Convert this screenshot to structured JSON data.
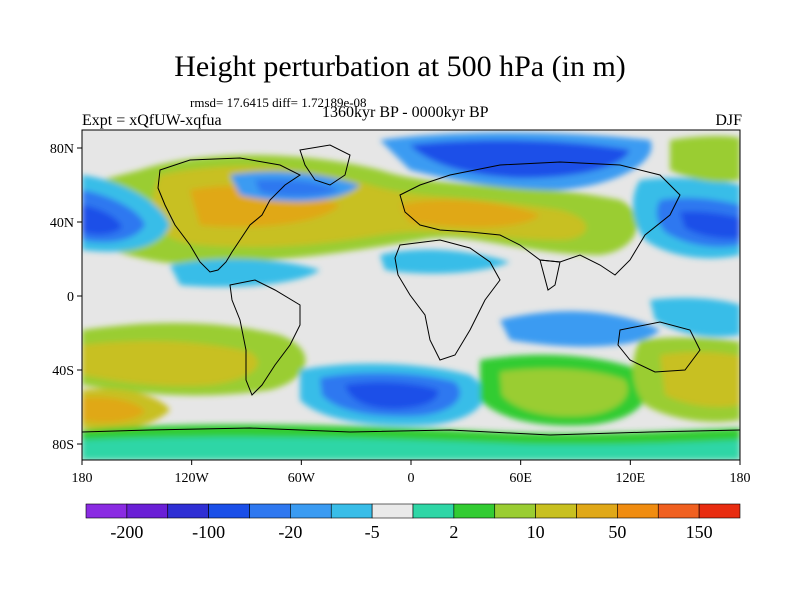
{
  "title": "Height perturbation at 500 hPa (in m)",
  "stats": "rmsd= 17.6415 diff= 1.72189e-08",
  "expt": "Expt = xQfUW-xqfua",
  "period": "1360kyr BP - 0000kyr BP",
  "season": "DJF",
  "lat_labels": [
    "80N",
    "40N",
    "0",
    "40S",
    "80S"
  ],
  "lon_labels": [
    "180",
    "120W",
    "60W",
    "0",
    "60E",
    "120E",
    "180"
  ],
  "colorbar": {
    "colors": [
      "#8a2be2",
      "#6a1fd6",
      "#2f2fd4",
      "#1a4fe8",
      "#2f78f0",
      "#3a9bf2",
      "#39bde8",
      "#eaeaea",
      "#2fd6a6",
      "#33cc33",
      "#9acd32",
      "#c8c020",
      "#e0a818",
      "#f08c10",
      "#f06020",
      "#e82c10"
    ],
    "labels": [
      "-200",
      "-100",
      "-20",
      "-5",
      "2",
      "10",
      "50",
      "150"
    ]
  }
}
